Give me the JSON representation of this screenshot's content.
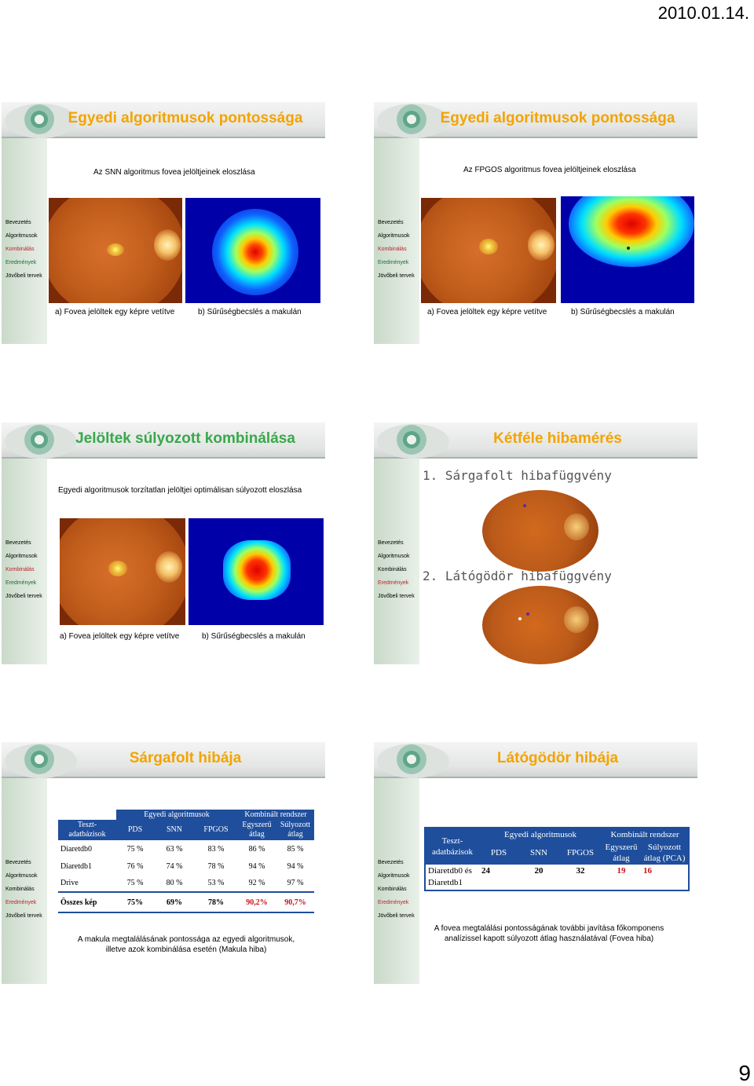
{
  "page": {
    "date": "2010.01.14.",
    "number": "9"
  },
  "sidebar_items": [
    "Bevezetés",
    "Algoritmusok",
    "Kombinálás",
    "Eredmények",
    "Jövőbeli tervek"
  ],
  "slides": {
    "s1": {
      "title": "Egyedi algoritmusok pontossága",
      "subtitle": "Az SNN algoritmus fovea jelöltjeinek eloszlása",
      "caption_a": "a) Fovea jelöltek egy képre vetítve",
      "caption_b": "b) Sűrűségbecslés a makulán"
    },
    "s2": {
      "title": "Egyedi algoritmusok pontossága",
      "subtitle": "Az FPGOS algoritmus fovea jelöltjeinek eloszlása",
      "caption_a": "a) Fovea jelöltek egy képre vetítve",
      "caption_b": "b) Sűrűségbecslés a makulán"
    },
    "s3": {
      "title": "Jelöltek súlyozott kombinálása",
      "subtitle": "Egyedi algoritmusok torzítatlan jelöltjei optimálisan súlyozott eloszlása",
      "caption_a": "a) Fovea jelöltek egy képre vetítve",
      "caption_b": "b) Sűrűségbecslés a makulán"
    },
    "s4": {
      "title": "Kétféle hibamérés",
      "item1": "1. Sárgafolt hibafüggvény",
      "item2": "2. Látógödör hibafüggvény"
    },
    "s5": {
      "title": "Sárgafolt hibája",
      "group_individual": "Egyedi algoritmusok",
      "group_combined": "Kombinált rendszer",
      "col_db": [
        "Teszt-",
        "adatbázisok"
      ],
      "col_pds": "PDS",
      "col_snn": "SNN",
      "col_fpgos": "FPGOS",
      "col_simple": [
        "Egyszerű",
        "átlag"
      ],
      "col_weighted": [
        "Súlyozott",
        "átlag"
      ],
      "rows": [
        [
          "Diaretdb0",
          "75 %",
          "63 %",
          "83 %",
          "86 %",
          "85 %"
        ],
        [
          "Diaretdb1",
          "76 %",
          "74 %",
          "78 %",
          "94 %",
          "94 %"
        ],
        [
          "Drive",
          "75 %",
          "80 %",
          "53 %",
          "92 %",
          "97 %"
        ],
        [
          "Összes kép",
          "75%",
          "69%",
          "78%",
          "90,2%",
          "90,7%"
        ]
      ],
      "note": [
        "A makula megtalálásának pontossága az egyedi algoritmusok,",
        "illetve azok kombinálása esetén (Makula hiba)"
      ]
    },
    "s6": {
      "title": "Látógödör hibája",
      "group_individual": "Egyedi algoritmusok",
      "group_combined": "Kombinált rendszer",
      "col_db": [
        "Teszt-",
        "adatbázisok"
      ],
      "col_pds": "PDS",
      "col_snn": "SNN",
      "col_fpgos": "FPGOS",
      "col_simple": [
        "Egyszerű",
        "átlag"
      ],
      "col_weighted": [
        "Súlyozott",
        "átlag (PCA)"
      ],
      "row_db": [
        "Diaretdb0 és",
        "Diaretdb1"
      ],
      "row_vals": [
        "24",
        "20",
        "32",
        "19",
        "16"
      ],
      "note": [
        "A fovea megtalálási pontosságának további javítása főkomponens",
        "analízissel kapott súlyozott átlag használatával (Fovea hiba)"
      ]
    }
  },
  "colors": {
    "orange_title": "#f4a300",
    "green_title": "#39a84b",
    "active_red": "#c0202a"
  }
}
